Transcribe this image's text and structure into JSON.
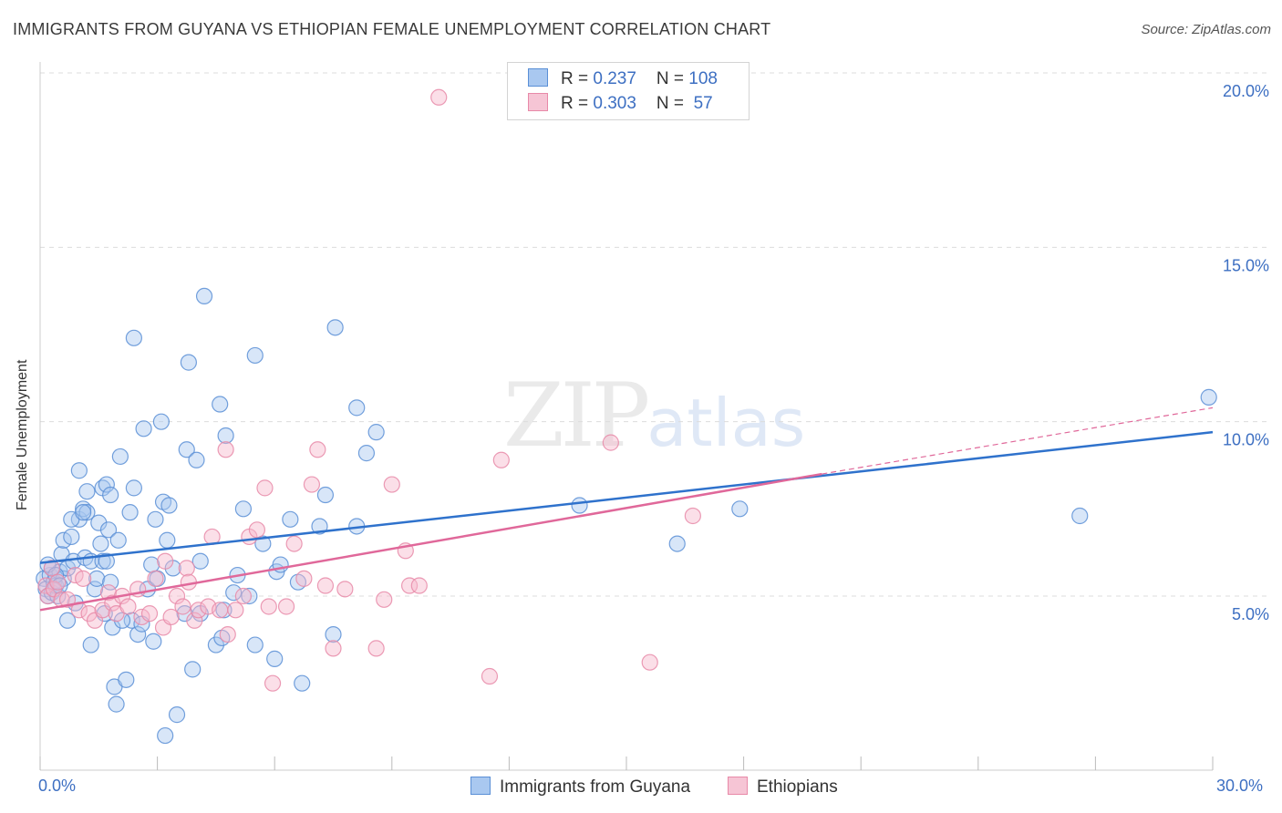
{
  "title": "IMMIGRANTS FROM GUYANA VS ETHIOPIAN FEMALE UNEMPLOYMENT CORRELATION CHART",
  "source": "Source: ZipAtlas.com",
  "watermark": {
    "zip": "ZIP",
    "atlas": "atlas"
  },
  "legend": {
    "blue": {
      "r_label": "R = ",
      "r_value": "0.237",
      "n_label": "N = ",
      "n_value": "108"
    },
    "pink": {
      "r_label": "R = ",
      "r_value": "0.303",
      "n_label": "N = ",
      "n_value": " 57"
    }
  },
  "bottom_legend": {
    "blue": "Immigrants from Guyana",
    "pink": "Ethiopians"
  },
  "colors": {
    "blue_fill": "#a9c8f0",
    "blue_stroke": "#5a8fd6",
    "blue_line": "#2f72cc",
    "pink_fill": "#f6b8cc",
    "pink_stroke": "#e889a8",
    "pink_line": "#e0689a",
    "axis_text": "#3d6fc2",
    "grid": "#dcdcdc"
  },
  "chart_data": {
    "type": "scatter",
    "title": "IMMIGRANTS FROM GUYANA VS ETHIOPIAN FEMALE UNEMPLOYMENT CORRELATION CHART",
    "xlabel": "",
    "ylabel": "Female Unemployment",
    "xlim": [
      0,
      30
    ],
    "ylim": [
      0,
      20.5
    ],
    "x_tick_labels": [
      "0.0%",
      "30.0%"
    ],
    "y_ticks": [
      5,
      10,
      15,
      20
    ],
    "y_tick_labels": [
      "5.0%",
      "10.0%",
      "15.0%",
      "20.0%"
    ],
    "series": [
      {
        "name": "Immigrants from Guyana",
        "color": "blue",
        "r": 0.237,
        "n": 108,
        "trend": {
          "x": [
            0,
            30
          ],
          "y": [
            5.95,
            9.7
          ],
          "dashed_to": null
        },
        "points": [
          [
            0.1,
            5.5
          ],
          [
            0.15,
            5.2
          ],
          [
            0.2,
            5.0
          ],
          [
            0.25,
            5.6
          ],
          [
            0.3,
            5.1
          ],
          [
            0.3,
            5.8
          ],
          [
            0.35,
            5.4
          ],
          [
            0.4,
            5.3
          ],
          [
            0.45,
            5.0
          ],
          [
            0.5,
            5.7
          ],
          [
            0.55,
            6.2
          ],
          [
            0.6,
            5.5
          ],
          [
            0.6,
            6.6
          ],
          [
            0.7,
            5.8
          ],
          [
            0.7,
            4.3
          ],
          [
            0.8,
            6.7
          ],
          [
            0.85,
            6.0
          ],
          [
            0.9,
            4.8
          ],
          [
            1.0,
            7.2
          ],
          [
            1.0,
            8.6
          ],
          [
            1.1,
            7.5
          ],
          [
            1.15,
            6.1
          ],
          [
            1.2,
            7.4
          ],
          [
            1.2,
            8.0
          ],
          [
            1.3,
            6.0
          ],
          [
            1.3,
            3.6
          ],
          [
            1.4,
            5.2
          ],
          [
            1.45,
            5.5
          ],
          [
            1.5,
            7.1
          ],
          [
            1.55,
            6.5
          ],
          [
            1.6,
            8.1
          ],
          [
            1.6,
            6.0
          ],
          [
            1.65,
            4.5
          ],
          [
            1.7,
            8.2
          ],
          [
            1.75,
            6.9
          ],
          [
            1.8,
            7.9
          ],
          [
            1.8,
            5.4
          ],
          [
            1.85,
            4.1
          ],
          [
            1.9,
            2.4
          ],
          [
            1.95,
            1.9
          ],
          [
            2.0,
            6.6
          ],
          [
            2.05,
            9.0
          ],
          [
            2.2,
            2.6
          ],
          [
            2.3,
            7.4
          ],
          [
            2.35,
            4.3
          ],
          [
            2.4,
            8.1
          ],
          [
            2.4,
            12.4
          ],
          [
            2.5,
            3.9
          ],
          [
            2.6,
            4.2
          ],
          [
            2.65,
            9.8
          ],
          [
            2.75,
            5.2
          ],
          [
            2.85,
            5.9
          ],
          [
            2.9,
            3.7
          ],
          [
            2.95,
            7.2
          ],
          [
            3.0,
            5.5
          ],
          [
            3.1,
            10.0
          ],
          [
            3.15,
            7.7
          ],
          [
            3.2,
            1.0
          ],
          [
            3.25,
            6.6
          ],
          [
            3.3,
            7.6
          ],
          [
            3.4,
            5.8
          ],
          [
            3.5,
            1.6
          ],
          [
            3.7,
            4.5
          ],
          [
            3.75,
            9.2
          ],
          [
            3.8,
            11.7
          ],
          [
            3.9,
            2.9
          ],
          [
            4.0,
            8.9
          ],
          [
            4.1,
            6.0
          ],
          [
            4.1,
            4.5
          ],
          [
            4.2,
            13.6
          ],
          [
            4.5,
            3.6
          ],
          [
            4.6,
            10.5
          ],
          [
            4.65,
            3.8
          ],
          [
            4.7,
            4.6
          ],
          [
            4.75,
            9.6
          ],
          [
            4.95,
            5.1
          ],
          [
            5.05,
            5.6
          ],
          [
            5.2,
            7.5
          ],
          [
            5.35,
            5.0
          ],
          [
            5.5,
            3.6
          ],
          [
            5.5,
            11.9
          ],
          [
            5.7,
            6.5
          ],
          [
            6.0,
            3.2
          ],
          [
            6.05,
            5.7
          ],
          [
            6.15,
            5.9
          ],
          [
            6.4,
            7.2
          ],
          [
            6.6,
            5.4
          ],
          [
            6.7,
            2.5
          ],
          [
            7.15,
            7.0
          ],
          [
            7.3,
            7.9
          ],
          [
            7.5,
            3.9
          ],
          [
            7.55,
            12.7
          ],
          [
            8.1,
            10.4
          ],
          [
            8.1,
            7.0
          ],
          [
            8.35,
            9.1
          ],
          [
            8.6,
            9.7
          ],
          [
            13.8,
            7.6
          ],
          [
            16.3,
            6.5
          ],
          [
            17.9,
            7.5
          ],
          [
            26.6,
            7.3
          ],
          [
            29.9,
            10.7
          ],
          [
            0.2,
            5.9
          ],
          [
            0.4,
            5.6
          ],
          [
            0.5,
            5.3
          ],
          [
            0.8,
            7.2
          ],
          [
            1.1,
            7.4
          ],
          [
            1.7,
            6.0
          ],
          [
            2.1,
            4.3
          ]
        ]
      },
      {
        "name": "Ethiopians",
        "color": "pink",
        "r": 0.303,
        "n": 57,
        "trend": {
          "x": [
            0,
            20
          ],
          "y": [
            4.6,
            8.5
          ],
          "dashed_to": [
            30,
            10.4
          ]
        },
        "points": [
          [
            0.15,
            5.3
          ],
          [
            0.2,
            5.0
          ],
          [
            0.3,
            5.8
          ],
          [
            0.35,
            5.2
          ],
          [
            0.45,
            5.4
          ],
          [
            0.55,
            4.9
          ],
          [
            0.7,
            4.9
          ],
          [
            0.9,
            5.6
          ],
          [
            1.0,
            4.6
          ],
          [
            1.1,
            5.5
          ],
          [
            1.25,
            4.5
          ],
          [
            1.4,
            4.3
          ],
          [
            1.6,
            4.6
          ],
          [
            1.75,
            5.1
          ],
          [
            1.85,
            4.8
          ],
          [
            1.95,
            4.5
          ],
          [
            2.1,
            5.0
          ],
          [
            2.25,
            4.7
          ],
          [
            2.5,
            5.2
          ],
          [
            2.6,
            4.4
          ],
          [
            2.8,
            4.5
          ],
          [
            2.95,
            5.5
          ],
          [
            3.15,
            4.1
          ],
          [
            3.2,
            6.0
          ],
          [
            3.35,
            4.4
          ],
          [
            3.5,
            5.0
          ],
          [
            3.65,
            4.7
          ],
          [
            3.75,
            5.8
          ],
          [
            3.8,
            5.4
          ],
          [
            3.95,
            4.3
          ],
          [
            4.05,
            4.6
          ],
          [
            4.3,
            4.7
          ],
          [
            4.4,
            6.7
          ],
          [
            4.6,
            4.6
          ],
          [
            4.75,
            9.2
          ],
          [
            4.8,
            3.9
          ],
          [
            5.0,
            4.6
          ],
          [
            5.2,
            5.0
          ],
          [
            5.35,
            6.7
          ],
          [
            5.55,
            6.9
          ],
          [
            5.75,
            8.1
          ],
          [
            5.85,
            4.7
          ],
          [
            5.95,
            2.5
          ],
          [
            6.3,
            4.7
          ],
          [
            6.5,
            6.5
          ],
          [
            6.75,
            5.5
          ],
          [
            6.95,
            8.2
          ],
          [
            7.1,
            9.2
          ],
          [
            7.3,
            5.3
          ],
          [
            7.5,
            3.5
          ],
          [
            7.8,
            5.2
          ],
          [
            8.6,
            3.5
          ],
          [
            8.8,
            4.9
          ],
          [
            9.0,
            8.2
          ],
          [
            9.35,
            6.3
          ],
          [
            9.45,
            5.3
          ],
          [
            9.7,
            5.3
          ]
        ],
        "extra_points": [
          [
            10.2,
            19.3
          ],
          [
            11.5,
            2.7
          ],
          [
            11.8,
            8.9
          ],
          [
            14.6,
            9.4
          ],
          [
            15.6,
            3.1
          ],
          [
            16.7,
            7.3
          ]
        ]
      }
    ]
  }
}
